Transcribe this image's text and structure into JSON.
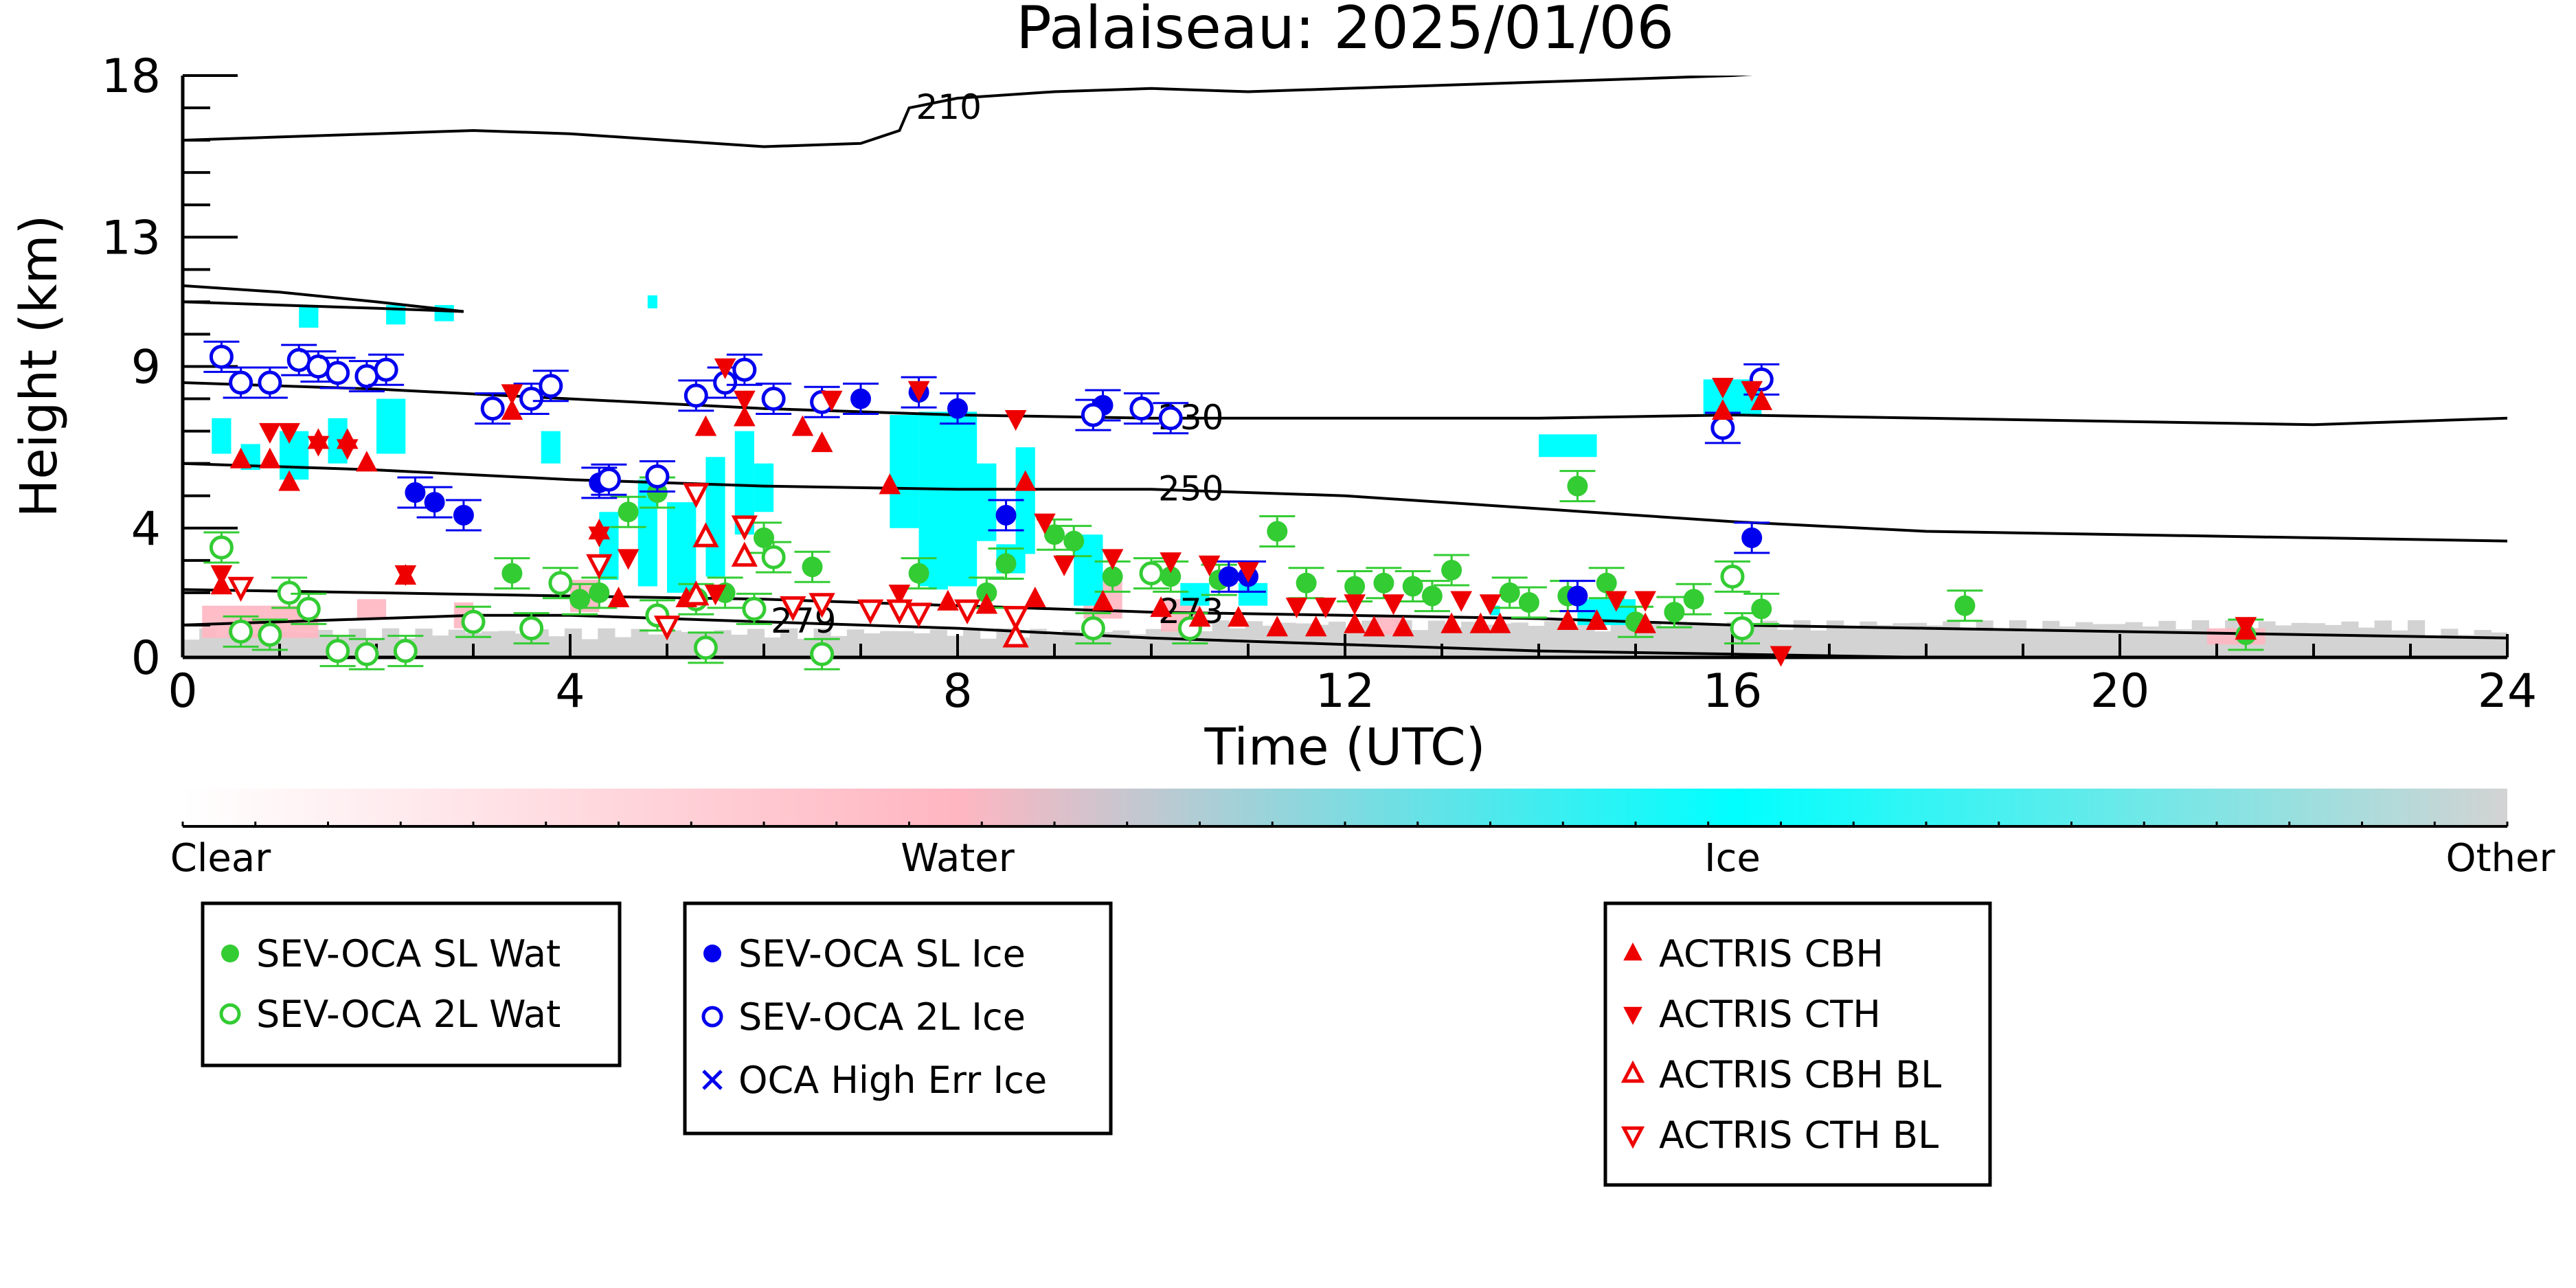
{
  "chart_data": {
    "type": "scatter",
    "title": "Palaiseau: 2025/01/06",
    "xlabel": "Time (UTC)",
    "ylabel": "Height (km)",
    "xlim": [
      0,
      24
    ],
    "ylim": [
      0,
      18
    ],
    "x_ticks": [
      0,
      4,
      8,
      12,
      16,
      20,
      24
    ],
    "y_ticks": [
      0,
      4,
      9,
      13,
      18
    ],
    "colorbar": {
      "labels": [
        "Clear",
        "Water",
        "Ice",
        "Other"
      ],
      "colors": [
        "#ffffff",
        "#ffb6c1",
        "#00ffff",
        "#d3d3d3"
      ]
    },
    "contours": [
      {
        "label": "210",
        "points": [
          [
            0,
            16.0
          ],
          [
            1,
            16.1
          ],
          [
            2,
            16.2
          ],
          [
            3,
            16.3
          ],
          [
            4,
            16.2
          ],
          [
            5,
            16.0
          ],
          [
            6,
            15.8
          ],
          [
            7,
            15.9
          ],
          [
            7.4,
            16.3
          ],
          [
            7.5,
            17.0
          ],
          [
            8,
            17.3
          ],
          [
            9,
            17.5
          ],
          [
            10,
            17.6
          ],
          [
            11,
            17.5
          ],
          [
            12,
            17.6
          ],
          [
            13,
            17.7
          ],
          [
            14,
            17.8
          ],
          [
            15,
            17.9
          ],
          [
            16,
            18.0
          ],
          [
            16.5,
            18.1
          ]
        ]
      },
      {
        "label": "",
        "points": [
          [
            0,
            11.5
          ],
          [
            1,
            11.3
          ],
          [
            2,
            11.0
          ],
          [
            2.9,
            10.7
          ]
        ]
      },
      {
        "label": "",
        "points": [
          [
            0,
            11.0
          ],
          [
            1,
            10.9
          ],
          [
            2,
            10.8
          ],
          [
            2.9,
            10.7
          ]
        ]
      },
      {
        "label": "230",
        "points": [
          [
            0,
            8.5
          ],
          [
            2,
            8.3
          ],
          [
            4,
            8.0
          ],
          [
            6,
            7.7
          ],
          [
            8,
            7.5
          ],
          [
            10,
            7.4
          ],
          [
            12,
            7.4
          ],
          [
            14,
            7.4
          ],
          [
            16,
            7.5
          ],
          [
            18,
            7.4
          ],
          [
            20,
            7.3
          ],
          [
            22,
            7.2
          ],
          [
            24,
            7.4
          ]
        ]
      },
      {
        "label": "250",
        "points": [
          [
            0,
            6.0
          ],
          [
            2,
            5.8
          ],
          [
            4,
            5.5
          ],
          [
            6,
            5.3
          ],
          [
            8,
            5.2
          ],
          [
            10,
            5.2
          ],
          [
            12,
            5.0
          ],
          [
            14,
            4.6
          ],
          [
            16,
            4.2
          ],
          [
            18,
            3.9
          ],
          [
            20,
            3.8
          ],
          [
            22,
            3.7
          ],
          [
            24,
            3.6
          ]
        ]
      },
      {
        "label": "273",
        "points": [
          [
            0,
            2.1
          ],
          [
            2,
            2.0
          ],
          [
            4,
            1.9
          ],
          [
            6,
            1.8
          ],
          [
            8,
            1.6
          ],
          [
            10,
            1.4
          ],
          [
            12,
            1.3
          ],
          [
            14,
            1.2
          ],
          [
            16,
            1.0
          ],
          [
            18,
            0.9
          ],
          [
            20,
            0.8
          ],
          [
            22,
            0.7
          ],
          [
            24,
            0.6
          ]
        ]
      },
      {
        "label": "279",
        "points": [
          [
            0,
            1.0
          ],
          [
            1,
            1.1
          ],
          [
            2,
            1.2
          ],
          [
            3,
            1.3
          ],
          [
            4,
            1.3
          ],
          [
            6,
            1.1
          ],
          [
            8,
            0.9
          ],
          [
            10,
            0.6
          ],
          [
            12,
            0.4
          ],
          [
            14,
            0.2
          ],
          [
            16,
            0.1
          ],
          [
            18,
            0.0
          ],
          [
            19,
            0.0
          ]
        ]
      }
    ],
    "series": [
      {
        "name": "SEV-OCA SL Wat",
        "marker": "filled-circle",
        "color": "#33cc33",
        "points": [
          [
            3.4,
            2.6
          ],
          [
            4.1,
            1.8
          ],
          [
            4.6,
            4.5
          ],
          [
            4.9,
            5.1
          ],
          [
            6.0,
            3.7
          ],
          [
            7.6,
            2.6
          ],
          [
            8.5,
            2.9
          ],
          [
            9.0,
            3.8
          ],
          [
            9.2,
            3.6
          ],
          [
            9.6,
            2.5
          ],
          [
            10.2,
            2.5
          ],
          [
            10.7,
            2.4
          ],
          [
            11.3,
            3.9
          ],
          [
            11.6,
            2.3
          ],
          [
            12.1,
            2.2
          ],
          [
            12.4,
            2.3
          ],
          [
            12.7,
            2.2
          ],
          [
            13.1,
            2.7
          ],
          [
            12.9,
            1.9
          ],
          [
            13.7,
            2.0
          ],
          [
            13.9,
            1.7
          ],
          [
            14.3,
            1.9
          ],
          [
            14.4,
            5.3
          ],
          [
            14.7,
            2.3
          ],
          [
            15.4,
            1.4
          ],
          [
            15.6,
            1.8
          ],
          [
            16.3,
            1.5
          ],
          [
            18.4,
            1.6
          ],
          [
            21.3,
            0.7
          ],
          [
            5.6,
            2.0
          ],
          [
            6.5,
            2.8
          ],
          [
            4.3,
            2.0
          ],
          [
            8.3,
            2.0
          ],
          [
            15.0,
            1.1
          ]
        ]
      },
      {
        "name": "SEV-OCA 2L Wat",
        "marker": "open-circle",
        "color": "#33cc33",
        "points": [
          [
            0.4,
            3.4
          ],
          [
            0.6,
            0.8
          ],
          [
            0.9,
            0.7
          ],
          [
            1.1,
            2.0
          ],
          [
            1.3,
            1.5
          ],
          [
            1.6,
            0.2
          ],
          [
            1.9,
            0.1
          ],
          [
            2.3,
            0.2
          ],
          [
            3.0,
            1.1
          ],
          [
            3.6,
            0.9
          ],
          [
            3.9,
            2.3
          ],
          [
            4.9,
            1.3
          ],
          [
            5.3,
            1.8
          ],
          [
            5.4,
            0.3
          ],
          [
            5.9,
            1.5
          ],
          [
            6.1,
            3.1
          ],
          [
            6.6,
            0.1
          ],
          [
            9.4,
            0.9
          ],
          [
            10.0,
            2.6
          ],
          [
            10.4,
            0.9
          ],
          [
            16.0,
            2.5
          ],
          [
            16.1,
            0.9
          ]
        ]
      },
      {
        "name": "SEV-OCA SL Ice",
        "marker": "filled-circle",
        "color": "#0000ee",
        "points": [
          [
            2.4,
            5.1
          ],
          [
            2.6,
            4.8
          ],
          [
            2.9,
            4.4
          ],
          [
            4.3,
            5.4
          ],
          [
            7.0,
            8.0
          ],
          [
            7.6,
            8.2
          ],
          [
            8.0,
            7.7
          ],
          [
            8.5,
            4.4
          ],
          [
            9.5,
            7.8
          ],
          [
            10.8,
            2.5
          ],
          [
            11.0,
            2.5
          ],
          [
            14.4,
            1.9
          ],
          [
            16.2,
            3.7
          ]
        ]
      },
      {
        "name": "SEV-OCA 2L Ice",
        "marker": "open-circle",
        "color": "#0000ee",
        "points": [
          [
            0.4,
            9.3
          ],
          [
            0.6,
            8.5
          ],
          [
            0.9,
            8.5
          ],
          [
            1.2,
            9.2
          ],
          [
            1.4,
            9.0
          ],
          [
            1.6,
            8.8
          ],
          [
            1.9,
            8.7
          ],
          [
            2.1,
            8.9
          ],
          [
            3.2,
            7.7
          ],
          [
            3.6,
            8.0
          ],
          [
            3.8,
            8.4
          ],
          [
            4.4,
            5.5
          ],
          [
            4.9,
            5.6
          ],
          [
            5.3,
            8.1
          ],
          [
            5.6,
            8.5
          ],
          [
            5.8,
            8.9
          ],
          [
            6.1,
            8.0
          ],
          [
            6.6,
            7.9
          ],
          [
            9.4,
            7.5
          ],
          [
            9.9,
            7.7
          ],
          [
            10.2,
            7.4
          ],
          [
            15.9,
            7.1
          ],
          [
            16.3,
            8.6
          ]
        ]
      },
      {
        "name": "OCA High Err Ice",
        "marker": "x",
        "color": "#0000ee",
        "points": []
      },
      {
        "name": "ACTRIS CBH",
        "marker": "triangle-up",
        "color": "#ee0000",
        "points": [
          [
            0.4,
            2.2
          ],
          [
            0.6,
            6.1
          ],
          [
            0.9,
            6.1
          ],
          [
            1.1,
            5.4
          ],
          [
            1.4,
            6.7
          ],
          [
            1.7,
            6.7
          ],
          [
            1.9,
            6.0
          ],
          [
            2.3,
            2.5
          ],
          [
            3.4,
            7.6
          ],
          [
            4.3,
            3.9
          ],
          [
            4.5,
            1.8
          ],
          [
            5.2,
            1.8
          ],
          [
            5.4,
            7.1
          ],
          [
            5.8,
            7.4
          ],
          [
            6.4,
            7.1
          ],
          [
            6.6,
            6.6
          ],
          [
            7.3,
            5.3
          ],
          [
            7.9,
            1.7
          ],
          [
            8.3,
            1.6
          ],
          [
            8.7,
            5.4
          ],
          [
            8.8,
            1.8
          ],
          [
            9.5,
            1.7
          ],
          [
            10.1,
            1.5
          ],
          [
            10.5,
            1.2
          ],
          [
            10.9,
            1.2
          ],
          [
            11.3,
            0.9
          ],
          [
            11.7,
            0.9
          ],
          [
            12.1,
            1.0
          ],
          [
            12.3,
            0.9
          ],
          [
            12.6,
            0.9
          ],
          [
            13.1,
            1.0
          ],
          [
            13.4,
            1.0
          ],
          [
            13.6,
            1.0
          ],
          [
            14.3,
            1.1
          ],
          [
            14.6,
            1.1
          ],
          [
            15.1,
            1.0
          ],
          [
            15.9,
            7.6
          ],
          [
            16.3,
            7.9
          ],
          [
            21.3,
            0.8
          ]
        ]
      },
      {
        "name": "ACTRIS CTH",
        "marker": "triangle-down",
        "color": "#ee0000",
        "points": [
          [
            0.4,
            2.6
          ],
          [
            0.9,
            7.0
          ],
          [
            1.1,
            7.0
          ],
          [
            1.4,
            6.6
          ],
          [
            1.7,
            6.5
          ],
          [
            2.3,
            2.6
          ],
          [
            3.4,
            8.2
          ],
          [
            4.3,
            3.8
          ],
          [
            4.6,
            3.1
          ],
          [
            5.5,
            2.0
          ],
          [
            5.6,
            9.0
          ],
          [
            5.8,
            8.0
          ],
          [
            6.7,
            8.0
          ],
          [
            7.4,
            2.0
          ],
          [
            7.6,
            8.3
          ],
          [
            8.6,
            7.4
          ],
          [
            8.9,
            4.2
          ],
          [
            9.1,
            2.9
          ],
          [
            9.6,
            3.1
          ],
          [
            10.2,
            3.0
          ],
          [
            10.6,
            2.9
          ],
          [
            11.0,
            2.7
          ],
          [
            11.5,
            1.6
          ],
          [
            11.8,
            1.6
          ],
          [
            12.1,
            1.7
          ],
          [
            12.5,
            1.7
          ],
          [
            13.2,
            1.8
          ],
          [
            13.5,
            1.7
          ],
          [
            14.8,
            1.8
          ],
          [
            15.1,
            1.8
          ],
          [
            15.9,
            8.4
          ],
          [
            16.2,
            8.3
          ],
          [
            16.5,
            0.1
          ],
          [
            21.3,
            1.0
          ]
        ]
      },
      {
        "name": "ACTRIS CBH BL",
        "marker": "open-triangle-up",
        "color": "#ee0000",
        "points": [
          [
            5.4,
            3.7
          ],
          [
            5.8,
            3.1
          ],
          [
            8.6,
            0.6
          ],
          [
            5.3,
            1.9
          ]
        ]
      },
      {
        "name": "ACTRIS CTH BL",
        "marker": "open-triangle-down",
        "color": "#ee0000",
        "points": [
          [
            0.6,
            2.2
          ],
          [
            4.3,
            2.9
          ],
          [
            5.3,
            5.1
          ],
          [
            5.8,
            4.1
          ],
          [
            6.3,
            1.6
          ],
          [
            6.6,
            1.7
          ],
          [
            7.1,
            1.5
          ],
          [
            7.4,
            1.5
          ],
          [
            7.6,
            1.4
          ],
          [
            8.1,
            1.5
          ],
          [
            8.6,
            1.3
          ],
          [
            5.0,
            1.0
          ]
        ]
      }
    ]
  },
  "legends": [
    {
      "entries": [
        {
          "label": "SEV-OCA SL Wat",
          "marker": "filled-circle",
          "color": "#33cc33"
        },
        {
          "label": "SEV-OCA 2L Wat",
          "marker": "open-circle",
          "color": "#33cc33"
        }
      ]
    },
    {
      "entries": [
        {
          "label": "SEV-OCA SL Ice",
          "marker": "filled-circle",
          "color": "#0000ee"
        },
        {
          "label": "SEV-OCA 2L Ice",
          "marker": "open-circle",
          "color": "#0000ee"
        },
        {
          "label": "OCA High Err Ice",
          "marker": "x",
          "color": "#0000ee"
        }
      ]
    },
    {
      "entries": [
        {
          "label": "ACTRIS CBH",
          "marker": "triangle-up",
          "color": "#ee0000"
        },
        {
          "label": "ACTRIS CTH",
          "marker": "triangle-down",
          "color": "#ee0000"
        },
        {
          "label": "ACTRIS CBH BL",
          "marker": "open-triangle-up",
          "color": "#ee0000"
        },
        {
          "label": "ACTRIS CTH BL",
          "marker": "open-triangle-down",
          "color": "#ee0000"
        }
      ]
    }
  ]
}
